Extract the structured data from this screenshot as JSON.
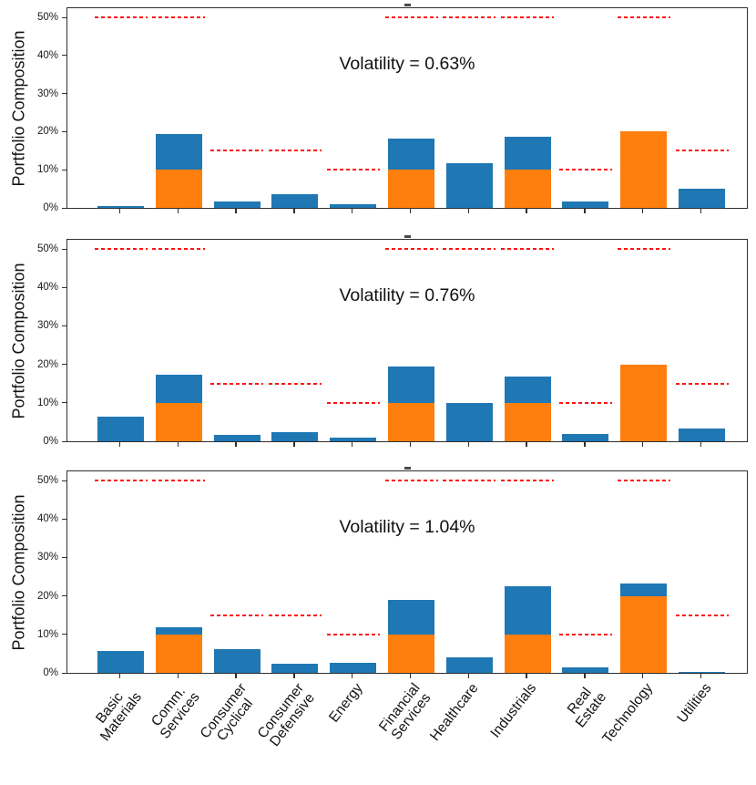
{
  "figure": {
    "background": "#ffffff",
    "ylabel": "Portfolio Composition",
    "ytick_labels": [
      "0%",
      "10%",
      "20%",
      "30%",
      "40%",
      "50%"
    ]
  },
  "colors": {
    "bar_blue": "#1f77b4",
    "bar_orange": "#ff7f0e",
    "limit_red": "#ff1212",
    "axis": "#2f2f2f",
    "text": "#1a1a1a"
  },
  "chart_data": [
    {
      "type": "bar",
      "stacked": true,
      "title": "Volatility = 0.63%",
      "ylabel": "Portfolio Composition",
      "xlabel": "",
      "ylim": [
        0,
        53
      ],
      "yticks": [
        0,
        10,
        20,
        30,
        40,
        50
      ],
      "grid": false,
      "legend": "none",
      "categories": [
        "Basic\nMaterials",
        "Comm.\nServices",
        "Consumer\nCyclical",
        "Consumer\nDefensive",
        "Energy",
        "Financial\nServices",
        "Healthcare",
        "Industrials",
        "Real\nEstate",
        "Technology",
        "Utilities"
      ],
      "series": [
        {
          "name": "orange-segment (bottom of stack)",
          "color": "#ff7f0e",
          "values": [
            0,
            10,
            0,
            0,
            0,
            10,
            0,
            10,
            0,
            20,
            0
          ]
        },
        {
          "name": "blue-segment (top of stack)",
          "color": "#1f77b4",
          "values": [
            0.5,
            9.3,
            1.6,
            3.7,
            1.0,
            8.2,
            11.8,
            8.7,
            1.6,
            0,
            5.0
          ]
        }
      ],
      "limits": {
        "name": "allocation-cap-dashed-line",
        "style": "dashed",
        "color": "#ff1212",
        "values": [
          50,
          50,
          15,
          15,
          10,
          50,
          50,
          50,
          10,
          50,
          15
        ]
      }
    },
    {
      "type": "bar",
      "stacked": true,
      "title": "Volatility = 0.76%",
      "ylabel": "Portfolio Composition",
      "xlabel": "",
      "ylim": [
        0,
        53
      ],
      "yticks": [
        0,
        10,
        20,
        30,
        40,
        50
      ],
      "grid": false,
      "legend": "none",
      "categories": [
        "Basic\nMaterials",
        "Comm.\nServices",
        "Consumer\nCyclical",
        "Consumer\nDefensive",
        "Energy",
        "Financial\nServices",
        "Healthcare",
        "Industrials",
        "Real\nEstate",
        "Technology",
        "Utilities"
      ],
      "series": [
        {
          "name": "orange-segment (bottom of stack)",
          "color": "#ff7f0e",
          "values": [
            0,
            10,
            0,
            0,
            0,
            10,
            0,
            10,
            0,
            20,
            0
          ]
        },
        {
          "name": "blue-segment (top of stack)",
          "color": "#1f77b4",
          "values": [
            6.5,
            7.2,
            1.6,
            2.3,
            1.0,
            9.4,
            10.0,
            6.8,
            1.8,
            0,
            3.3
          ]
        }
      ],
      "limits": {
        "name": "allocation-cap-dashed-line",
        "style": "dashed",
        "color": "#ff1212",
        "values": [
          50,
          50,
          15,
          15,
          10,
          50,
          50,
          50,
          10,
          50,
          15
        ]
      }
    },
    {
      "type": "bar",
      "stacked": true,
      "title": "Volatility = 1.04%",
      "ylabel": "Portfolio Composition",
      "xlabel": "",
      "ylim": [
        0,
        53
      ],
      "yticks": [
        0,
        10,
        20,
        30,
        40,
        50
      ],
      "grid": false,
      "legend": "none",
      "categories": [
        "Basic\nMaterials",
        "Comm.\nServices",
        "Consumer\nCyclical",
        "Consumer\nDefensive",
        "Energy",
        "Financial\nServices",
        "Healthcare",
        "Industrials",
        "Real\nEstate",
        "Technology",
        "Utilities"
      ],
      "series": [
        {
          "name": "orange-segment (bottom of stack)",
          "color": "#ff7f0e",
          "values": [
            0,
            10,
            0,
            0,
            0,
            10,
            0,
            10,
            0,
            20,
            0
          ]
        },
        {
          "name": "blue-segment (top of stack)",
          "color": "#1f77b4",
          "values": [
            5.7,
            1.8,
            6.2,
            2.4,
            2.7,
            9.0,
            4.1,
            12.5,
            1.5,
            3.2,
            0.3
          ]
        }
      ],
      "limits": {
        "name": "allocation-cap-dashed-line",
        "style": "dashed",
        "color": "#ff1212",
        "values": [
          50,
          50,
          15,
          15,
          10,
          50,
          50,
          50,
          10,
          50,
          15
        ]
      }
    }
  ]
}
